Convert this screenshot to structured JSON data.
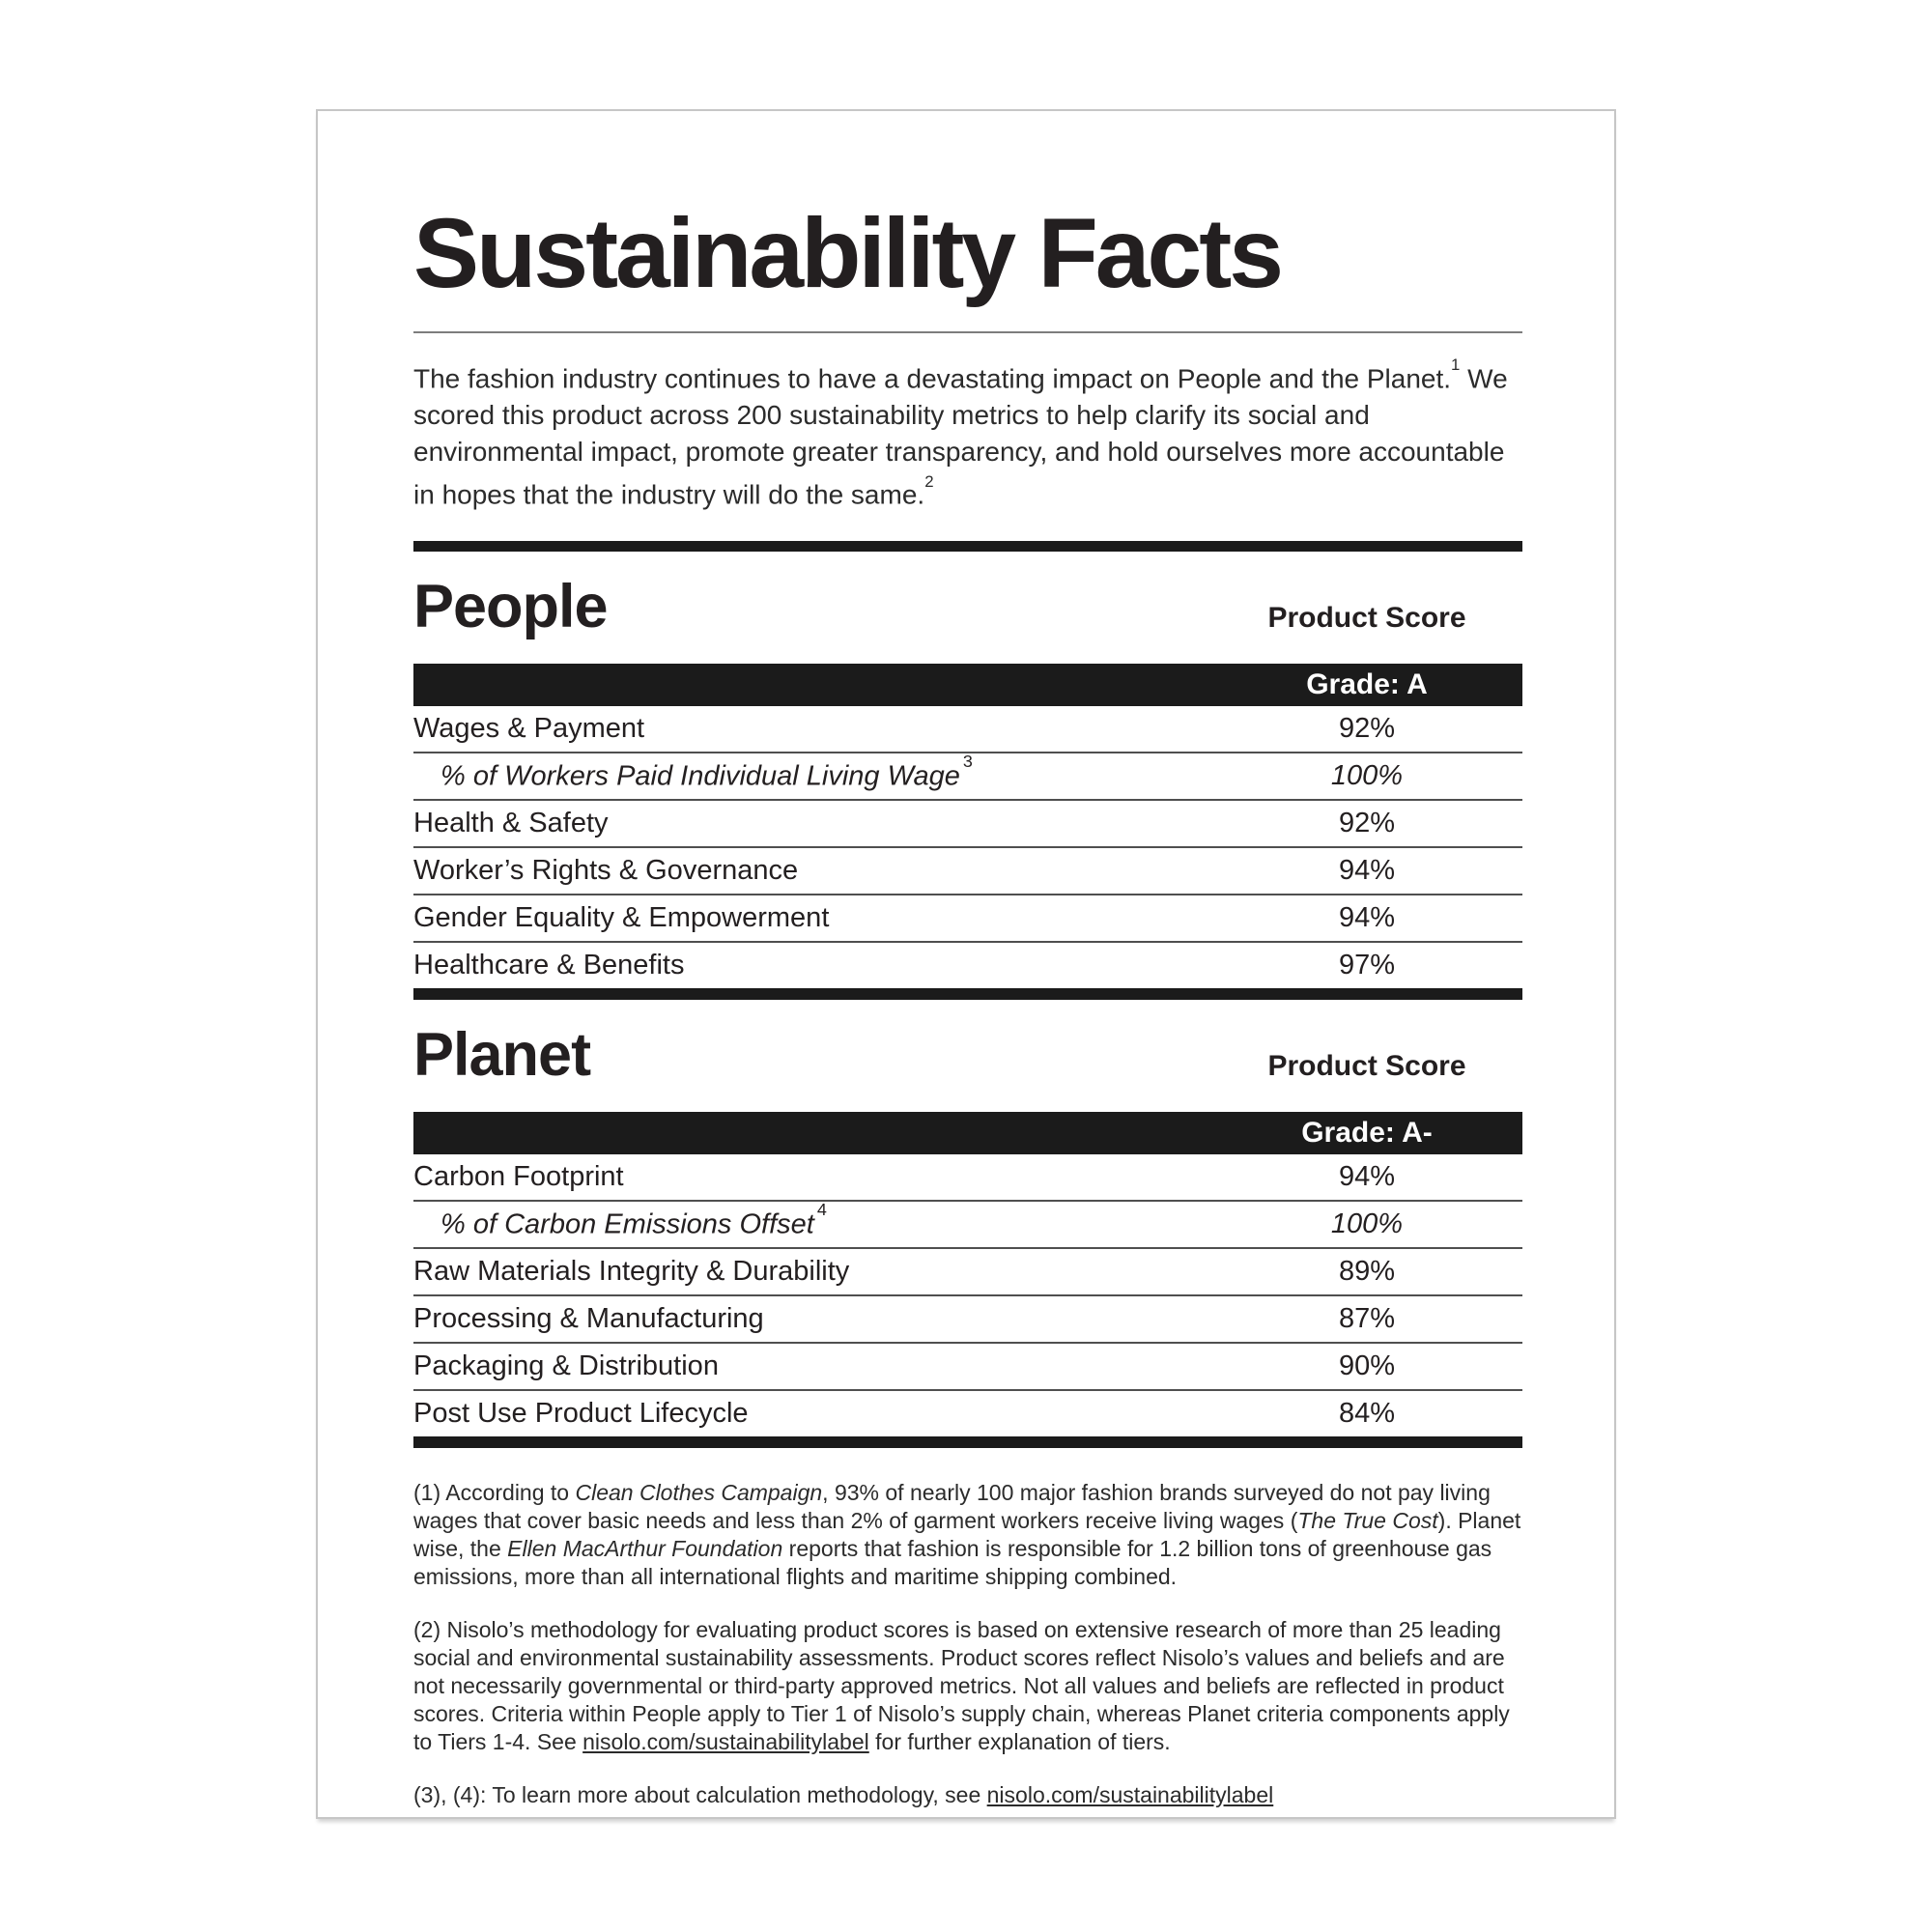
{
  "page": {
    "title": "Sustainability Facts"
  },
  "intro": {
    "part1": "The fashion industry continues to have a devastating impact on People and the Planet.",
    "sup1": "1",
    "part2": " We scored this product across 200 sustainability metrics to help clarify its social and environmental impact, promote greater transparency, and hold ourselves more accountable in hopes that the industry will do the same.",
    "sup2": "2"
  },
  "people": {
    "heading": "People",
    "score_label": "Product Score",
    "grade": "Grade: A",
    "rows": [
      {
        "label": "Wages & Payment",
        "value": "92%"
      },
      {
        "label": "% of Workers Paid Individual Living Wage",
        "sup": "3",
        "value": "100%"
      },
      {
        "label": "Health & Safety",
        "value": "92%"
      },
      {
        "label": "Worker’s Rights & Governance",
        "value": "94%"
      },
      {
        "label": "Gender Equality & Empowerment",
        "value": "94%"
      },
      {
        "label": "Healthcare & Benefits",
        "value": "97%"
      }
    ]
  },
  "planet": {
    "heading": "Planet",
    "score_label": "Product Score",
    "grade": "Grade: A-",
    "rows": [
      {
        "label": "Carbon Footprint",
        "value": "94%"
      },
      {
        "label": "% of Carbon Emissions Offset",
        "sup": "4",
        "value": "100%"
      },
      {
        "label": "Raw Materials Integrity & Durability",
        "value": "89%"
      },
      {
        "label": "Processing & Manufacturing",
        "value": "87%"
      },
      {
        "label": "Packaging & Distribution",
        "value": "90%"
      },
      {
        "label": "Post Use Product Lifecycle",
        "value": "84%"
      }
    ]
  },
  "footnotes": {
    "fn1": {
      "s1": "(1) According to ",
      "em1": "Clean Clothes Campaign",
      "s2": ", 93% of nearly 100 major fashion brands surveyed do not pay living wages that cover basic needs and less than 2% of garment workers receive living wages (",
      "em2": "The True Cost",
      "s3": "). Planet wise, the ",
      "em3": "Ellen MacArthur Foundation",
      "s4": " reports that fashion is responsible for 1.2 billion tons of greenhouse gas emissions, more than all international flights and maritime shipping combined."
    },
    "fn2": {
      "s1": "(2) Nisolo’s methodology for evaluating product scores is based on extensive research of more than 25 leading social and environmental sustainability assessments. Product scores reflect Nisolo’s values and beliefs and are not necessarily governmental or third-party approved metrics. Not all values and beliefs are reflected in product scores. Criteria within People apply to Tier 1 of Nisolo’s supply chain, whereas Planet criteria components apply to Tiers 1-4. See ",
      "link": "nisolo.com/sustainabilitylabel",
      "s2": " for further explanation of tiers."
    },
    "fn3": {
      "s1": "(3), (4): To learn more about calculation methodology, see ",
      "link": "nisolo.com/sustainabilitylabel"
    }
  }
}
